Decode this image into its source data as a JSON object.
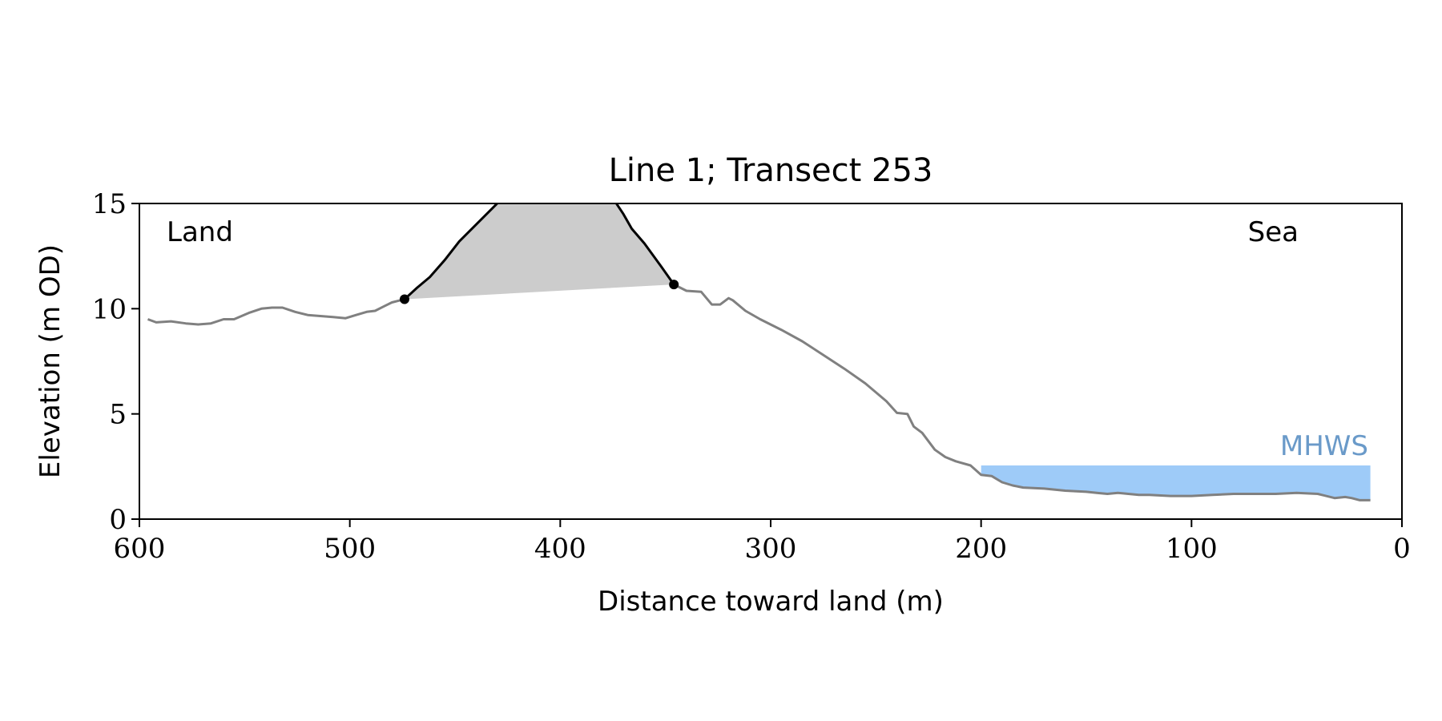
{
  "chart_data": {
    "type": "line",
    "title": "Line 1; Transect 253",
    "xlabel": "Distance toward land (m)",
    "ylabel": "Elevation (m OD)",
    "xlim": [
      600,
      0
    ],
    "ylim": [
      0,
      15
    ],
    "x_ticks": [
      600,
      500,
      400,
      300,
      200,
      100,
      0
    ],
    "y_ticks": [
      0,
      5,
      10,
      15
    ],
    "grid": false,
    "annotations": {
      "land": "Land",
      "sea": "Sea",
      "mhws": "MHWS"
    },
    "mhws": {
      "elevation": 2.55,
      "x_from": 200,
      "x_to": 15,
      "color": "#9ecbf8",
      "label_color": "#6a9ac9"
    },
    "colors": {
      "profile": "#808080",
      "feature": "#000000",
      "feature_fill": "#cccccc"
    },
    "profile": {
      "x": [
        596,
        592,
        585,
        578,
        572,
        566,
        560,
        555,
        548,
        542,
        537,
        532,
        526,
        520,
        514,
        508,
        502,
        497,
        492,
        488,
        484,
        480,
        476
      ],
      "y": [
        9.5,
        9.35,
        9.4,
        9.3,
        9.25,
        9.3,
        9.5,
        9.5,
        9.8,
        10.0,
        10.05,
        10.05,
        9.85,
        9.7,
        9.65,
        9.6,
        9.55,
        9.7,
        9.85,
        9.9,
        10.1,
        10.3,
        10.4
      ]
    },
    "feature": {
      "x": [
        474,
        468,
        462,
        455,
        448,
        440,
        432,
        424,
        416,
        408,
        400,
        392,
        384,
        376,
        370,
        366,
        360,
        352,
        346
      ],
      "y": [
        10.45,
        11.0,
        11.5,
        12.3,
        13.2,
        14.0,
        14.8,
        15.6,
        16.2,
        16.5,
        16.6,
        16.3,
        15.9,
        15.4,
        14.5,
        13.8,
        13.1,
        12.0,
        11.15
      ]
    },
    "feature_endpoints": [
      {
        "x": 474,
        "y": 10.45
      },
      {
        "x": 346,
        "y": 11.15
      }
    ],
    "seaward_profile": {
      "x": [
        346,
        340,
        333,
        328,
        324,
        320,
        318,
        312,
        305,
        295,
        285,
        275,
        265,
        255,
        245,
        240,
        235,
        232,
        228,
        222,
        217,
        212,
        205,
        200,
        195,
        190,
        185,
        180,
        170,
        160,
        150,
        145,
        140,
        135,
        130,
        125,
        120,
        110,
        100,
        90,
        80,
        70,
        60,
        50,
        40,
        32,
        27,
        24,
        20,
        15
      ],
      "y": [
        11.15,
        10.85,
        10.8,
        10.2,
        10.2,
        10.5,
        10.4,
        9.9,
        9.5,
        9.0,
        8.45,
        7.8,
        7.15,
        6.45,
        5.6,
        5.05,
        5.0,
        4.4,
        4.1,
        3.3,
        2.95,
        2.75,
        2.55,
        2.1,
        2.05,
        1.75,
        1.6,
        1.5,
        1.45,
        1.35,
        1.3,
        1.25,
        1.2,
        1.25,
        1.2,
        1.15,
        1.15,
        1.1,
        1.1,
        1.15,
        1.2,
        1.2,
        1.2,
        1.25,
        1.2,
        1.0,
        1.05,
        1.0,
        0.9,
        0.9
      ]
    }
  }
}
